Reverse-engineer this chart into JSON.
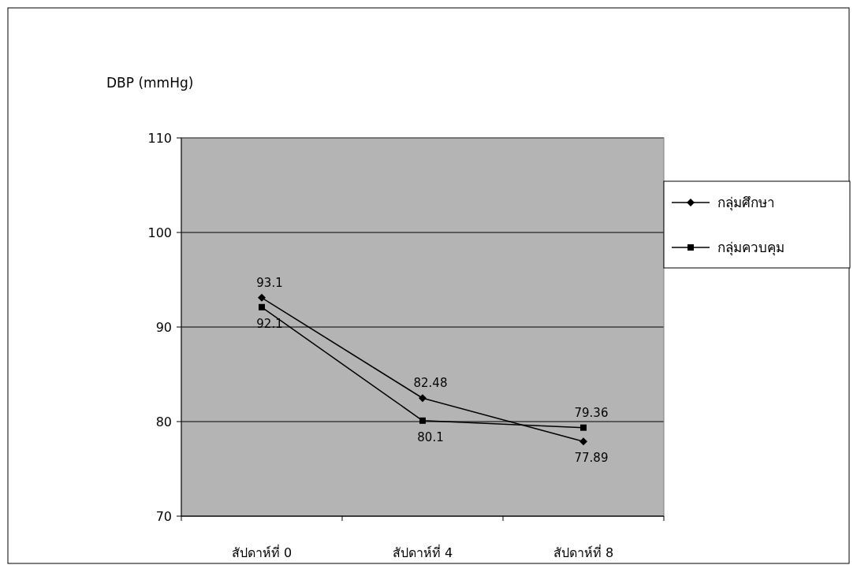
{
  "chart_data": {
    "type": "line",
    "ylabel": "DBP (mmHg)",
    "categories": [
      "สัปดาห์ที่ 0",
      "สัปดาห์ที่ 4",
      "สัปดาห์ที่ 8"
    ],
    "series": [
      {
        "name": "กลุ่มศึกษา",
        "color": "#000000",
        "marker": "diamond",
        "values": [
          93.1,
          82.48,
          77.89
        ]
      },
      {
        "name": "กลุ่มควบคุม",
        "color": "#000000",
        "marker": "square",
        "values": [
          92.1,
          80.1,
          79.36
        ]
      }
    ],
    "ylim": [
      70,
      110
    ],
    "yticks": [
      70,
      80,
      90,
      100,
      110
    ],
    "grid": "y",
    "legend": "right",
    "data_labels": true,
    "line_style": "solid"
  }
}
